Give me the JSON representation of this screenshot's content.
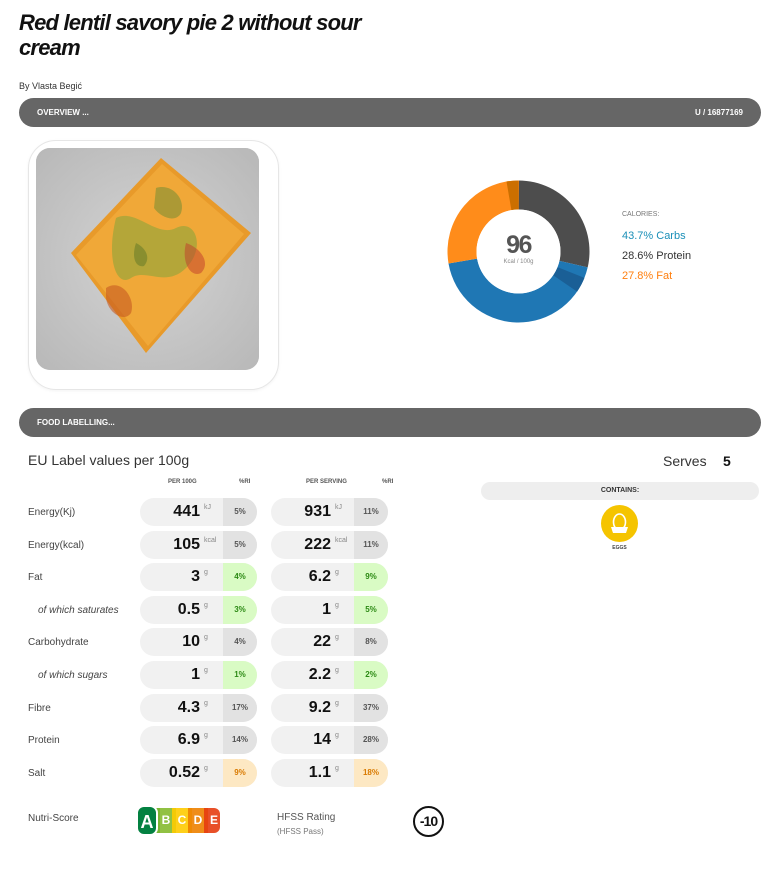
{
  "recipe": {
    "title": "Red lentil savory pie 2 without sour cream",
    "author": "By Vlasta Begić"
  },
  "overview": {
    "label": "OVERVIEW ...",
    "id": "U / 16877169"
  },
  "calories": {
    "value": "96",
    "unit": "Kcal / 100g",
    "legend_title": "CALORIES:",
    "segments": [
      {
        "name": "Carbs",
        "label": "43.7% Carbs",
        "pct": 43.7,
        "color": "#1f77b4"
      },
      {
        "name": "Protein",
        "label": "28.6% Protein",
        "pct": 28.6,
        "color": "#4d4d4d"
      },
      {
        "name": "Fat",
        "label": "27.8% Fat",
        "pct": 27.8,
        "color": "#ff8c1a"
      }
    ],
    "colors": {
      "carbs_text": "#1a8fb8",
      "protein_text": "#333333",
      "fat_text": "#ff7f0e"
    }
  },
  "food_labelling": {
    "label": "FOOD LABELLING...",
    "heading": "EU Label values per 100g",
    "serves_label": "Serves",
    "serves_value": "5",
    "col_per100": "PER 100G",
    "col_ri": "%RI",
    "col_serving": "PER SERVING",
    "col_ri2": "%RI",
    "rows": [
      {
        "label": "Energy(Kj)",
        "sub": false,
        "v100": "441",
        "u100": "kJ",
        "ri100": "5%",
        "ri100_class": "",
        "vs": "931",
        "us": "kJ",
        "ris": "11%",
        "ris_class": ""
      },
      {
        "label": "Energy(kcal)",
        "sub": false,
        "v100": "105",
        "u100": "kcal",
        "ri100": "5%",
        "ri100_class": "",
        "vs": "222",
        "us": "kcal",
        "ris": "11%",
        "ris_class": ""
      },
      {
        "label": "Fat",
        "sub": false,
        "v100": "3",
        "u100": "g",
        "ri100": "4%",
        "ri100_class": "green",
        "vs": "6.2",
        "us": "g",
        "ris": "9%",
        "ris_class": "green"
      },
      {
        "label": "of which saturates",
        "sub": true,
        "v100": "0.5",
        "u100": "g",
        "ri100": "3%",
        "ri100_class": "green",
        "vs": "1",
        "us": "g",
        "ris": "5%",
        "ris_class": "green"
      },
      {
        "label": "Carbohydrate",
        "sub": false,
        "v100": "10",
        "u100": "g",
        "ri100": "4%",
        "ri100_class": "",
        "vs": "22",
        "us": "g",
        "ris": "8%",
        "ris_class": ""
      },
      {
        "label": "of which sugars",
        "sub": true,
        "v100": "1",
        "u100": "g",
        "ri100": "1%",
        "ri100_class": "green",
        "vs": "2.2",
        "us": "g",
        "ris": "2%",
        "ris_class": "green"
      },
      {
        "label": "Fibre",
        "sub": false,
        "v100": "4.3",
        "u100": "g",
        "ri100": "17%",
        "ri100_class": "",
        "vs": "9.2",
        "us": "g",
        "ris": "37%",
        "ris_class": ""
      },
      {
        "label": "Protein",
        "sub": false,
        "v100": "6.9",
        "u100": "g",
        "ri100": "14%",
        "ri100_class": "",
        "vs": "14",
        "us": "g",
        "ris": "28%",
        "ris_class": ""
      },
      {
        "label": "Salt",
        "sub": false,
        "v100": "0.52",
        "u100": "g",
        "ri100": "9%",
        "ri100_class": "orange",
        "vs": "1.1",
        "us": "g",
        "ris": "18%",
        "ris_class": "orange"
      }
    ],
    "contains_label": "CONTAINS:",
    "allergen_icon": "egg-icon",
    "allergen_label": "EGGS"
  },
  "nutri_score": {
    "label": "Nutri-Score",
    "grade": "A",
    "letters": [
      "B",
      "C",
      "D",
      "E"
    ],
    "colors": [
      "#038141",
      "#85bb2f",
      "#fecb02",
      "#ee8100",
      "#e63e11"
    ]
  },
  "hfss": {
    "label": "HFSS Rating",
    "sub": "(HFSS Pass)",
    "score": "-10"
  }
}
